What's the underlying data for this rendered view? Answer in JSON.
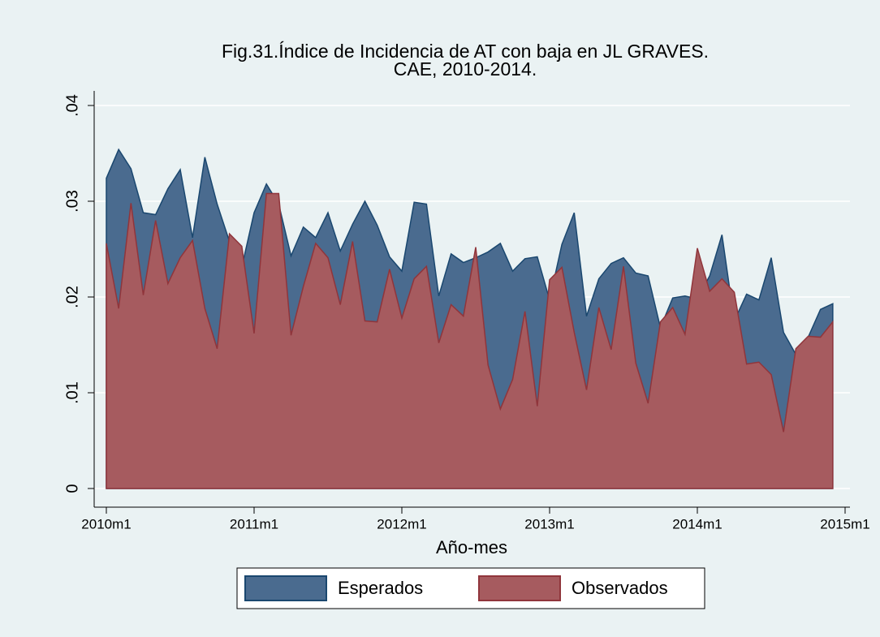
{
  "chart_data": {
    "type": "area",
    "title": [
      "Fig.31.Índice de Incidencia de AT con baja en JL GRAVES.",
      "CAE, 2010-2014."
    ],
    "x_label": "Año-mes",
    "x": [
      600,
      601,
      602,
      603,
      604,
      605,
      606,
      607,
      608,
      609,
      610,
      611,
      612,
      613,
      614,
      615,
      616,
      617,
      618,
      619,
      620,
      621,
      622,
      623,
      624,
      625,
      626,
      627,
      628,
      629,
      630,
      631,
      632,
      633,
      634,
      635,
      636,
      637,
      638,
      639,
      640,
      641,
      642,
      643,
      644,
      645,
      646,
      647,
      648,
      649,
      650,
      651,
      652,
      653,
      654,
      655,
      656,
      657,
      658,
      659
    ],
    "series": [
      {
        "name": "Esperados",
        "color": "#4a6b8f",
        "line_color": "#1a476f",
        "values": [
          0.0324,
          0.0354,
          0.0334,
          0.0288,
          0.0286,
          0.0313,
          0.0333,
          0.0262,
          0.0346,
          0.0297,
          0.0258,
          0.0231,
          0.0288,
          0.0318,
          0.0297,
          0.0243,
          0.0273,
          0.0262,
          0.0288,
          0.0248,
          0.0276,
          0.03,
          0.0275,
          0.0242,
          0.0227,
          0.0299,
          0.0297,
          0.0201,
          0.0245,
          0.0236,
          0.0241,
          0.0247,
          0.0256,
          0.0227,
          0.024,
          0.0242,
          0.0197,
          0.0255,
          0.0288,
          0.018,
          0.0219,
          0.0235,
          0.0241,
          0.0225,
          0.0222,
          0.0168,
          0.0199,
          0.0201,
          0.0198,
          0.0222,
          0.0265,
          0.0175,
          0.0203,
          0.0197,
          0.0241,
          0.0163,
          0.014,
          0.0158,
          0.0187,
          0.0193
        ]
      },
      {
        "name": "Observados",
        "color": "#a65b5f",
        "line_color": "#90353b",
        "values": [
          0.0256,
          0.0188,
          0.0298,
          0.0202,
          0.028,
          0.0214,
          0.0241,
          0.0259,
          0.0188,
          0.0146,
          0.0266,
          0.0253,
          0.0162,
          0.0308,
          0.0308,
          0.016,
          0.0211,
          0.0256,
          0.0241,
          0.0192,
          0.0258,
          0.0175,
          0.0174,
          0.0229,
          0.0178,
          0.0219,
          0.0232,
          0.0152,
          0.0192,
          0.018,
          0.0252,
          0.0129,
          0.0083,
          0.0114,
          0.0185,
          0.0086,
          0.0218,
          0.0231,
          0.0163,
          0.0103,
          0.0189,
          0.0145,
          0.0232,
          0.0131,
          0.0089,
          0.0174,
          0.0189,
          0.0161,
          0.0251,
          0.0206,
          0.0219,
          0.0205,
          0.013,
          0.0132,
          0.0119,
          0.0059,
          0.0146,
          0.0159,
          0.0158,
          0.0174
        ]
      }
    ],
    "xlim": [
      600,
      660
    ],
    "xticks": [
      {
        "value": 600,
        "label": "2010m1"
      },
      {
        "value": 612,
        "label": "2011m1"
      },
      {
        "value": 624,
        "label": "2012m1"
      },
      {
        "value": 636,
        "label": "2013m1"
      },
      {
        "value": 648,
        "label": "2014m1"
      },
      {
        "value": 660,
        "label": "2015m1"
      }
    ],
    "ylim": [
      0,
      0.04
    ],
    "yticks": [
      0,
      {
        "value": 0.01,
        "label": ".01"
      },
      {
        "value": 0.02,
        "label": ".02"
      },
      {
        "value": 0.03,
        "label": ".03"
      },
      {
        "value": 0.04,
        "label": ".04"
      }
    ],
    "grid": true,
    "legend": "bottom"
  }
}
